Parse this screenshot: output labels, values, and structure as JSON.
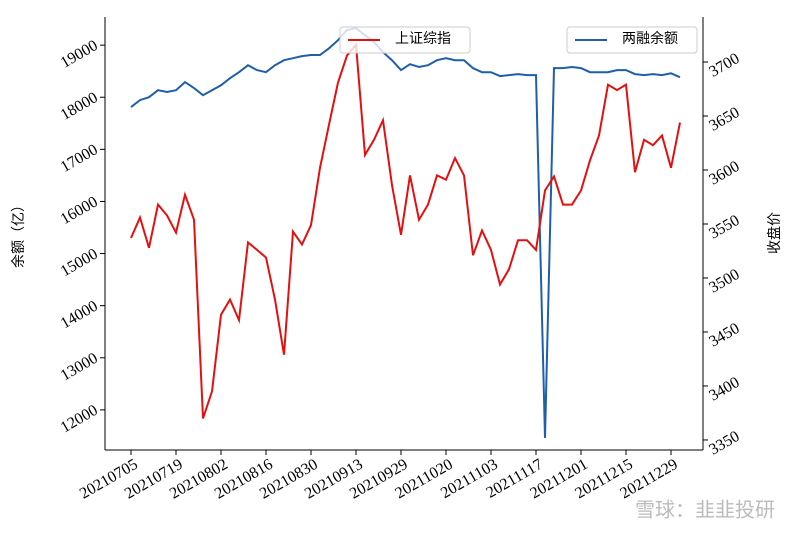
{
  "chart_data": {
    "type": "line",
    "categories": [
      "20210705",
      null,
      null,
      null,
      null,
      "20210719",
      null,
      null,
      null,
      null,
      "20210802",
      null,
      null,
      null,
      null,
      "20210816",
      null,
      null,
      null,
      null,
      "20210830",
      null,
      null,
      null,
      null,
      "20210913",
      null,
      null,
      null,
      null,
      "20210929",
      null,
      null,
      null,
      null,
      "20211020",
      null,
      null,
      null,
      null,
      "20211103",
      null,
      null,
      null,
      null,
      "20211117",
      null,
      null,
      null,
      null,
      "20211201",
      null,
      null,
      null,
      null,
      "20211215",
      null,
      null,
      null,
      null,
      "20211229",
      null
    ],
    "series": [
      {
        "name": "两融余额",
        "color": "#1f5fa8",
        "axis": "y",
        "legend": "upper right",
        "values": [
          17810,
          17945,
          18000,
          18135,
          18100,
          18135,
          18290,
          18175,
          18040,
          18135,
          18230,
          18365,
          18480,
          18615,
          18520,
          18480,
          18615,
          18710,
          18750,
          18790,
          18810,
          18810,
          18940,
          19095,
          19290,
          19325,
          19190,
          19060,
          18865,
          18710,
          18520,
          18635,
          18580,
          18615,
          18710,
          18750,
          18710,
          18710,
          18560,
          18480,
          18480,
          18405,
          18425,
          18445,
          18425,
          18425,
          11460,
          18560,
          18560,
          18580,
          18560,
          18480,
          18480,
          18480,
          18520,
          18520,
          18445,
          18425,
          18445,
          18425,
          18460,
          18385
        ]
      },
      {
        "name": "上证综指",
        "color": "#e41010",
        "axis": "y2",
        "legend": "upper center",
        "values": [
          3537,
          3556,
          3528,
          3568,
          3558,
          3542,
          3577,
          3554,
          3370,
          3395,
          3466,
          3480,
          3461,
          3533,
          3526,
          3519,
          3480,
          3429,
          3543,
          3531,
          3549,
          3602,
          3642,
          3681,
          3706,
          3716,
          3614,
          3628,
          3646,
          3586,
          3540,
          3595,
          3554,
          3568,
          3595,
          3591,
          3611,
          3595,
          3521,
          3544,
          3526,
          3494,
          3508,
          3535,
          3535,
          3526,
          3581,
          3594,
          3568,
          3568,
          3581,
          3609,
          3632,
          3679,
          3674,
          3679,
          3598,
          3628,
          3623,
          3632,
          3602,
          3644
        ]
      }
    ],
    "ylabel": "余额（亿）",
    "y2label": "收盘价",
    "ylim": [
      11230,
      19540
    ],
    "yticks": [
      12000,
      13000,
      14000,
      15000,
      16000,
      17000,
      18000,
      19000
    ],
    "y2lim": [
      3340.7,
      3741.7
    ],
    "y2ticks": [
      3350,
      3400,
      3450,
      3500,
      3550,
      3600,
      3650,
      3700
    ],
    "watermark": "雪球：韭韭投研"
  }
}
